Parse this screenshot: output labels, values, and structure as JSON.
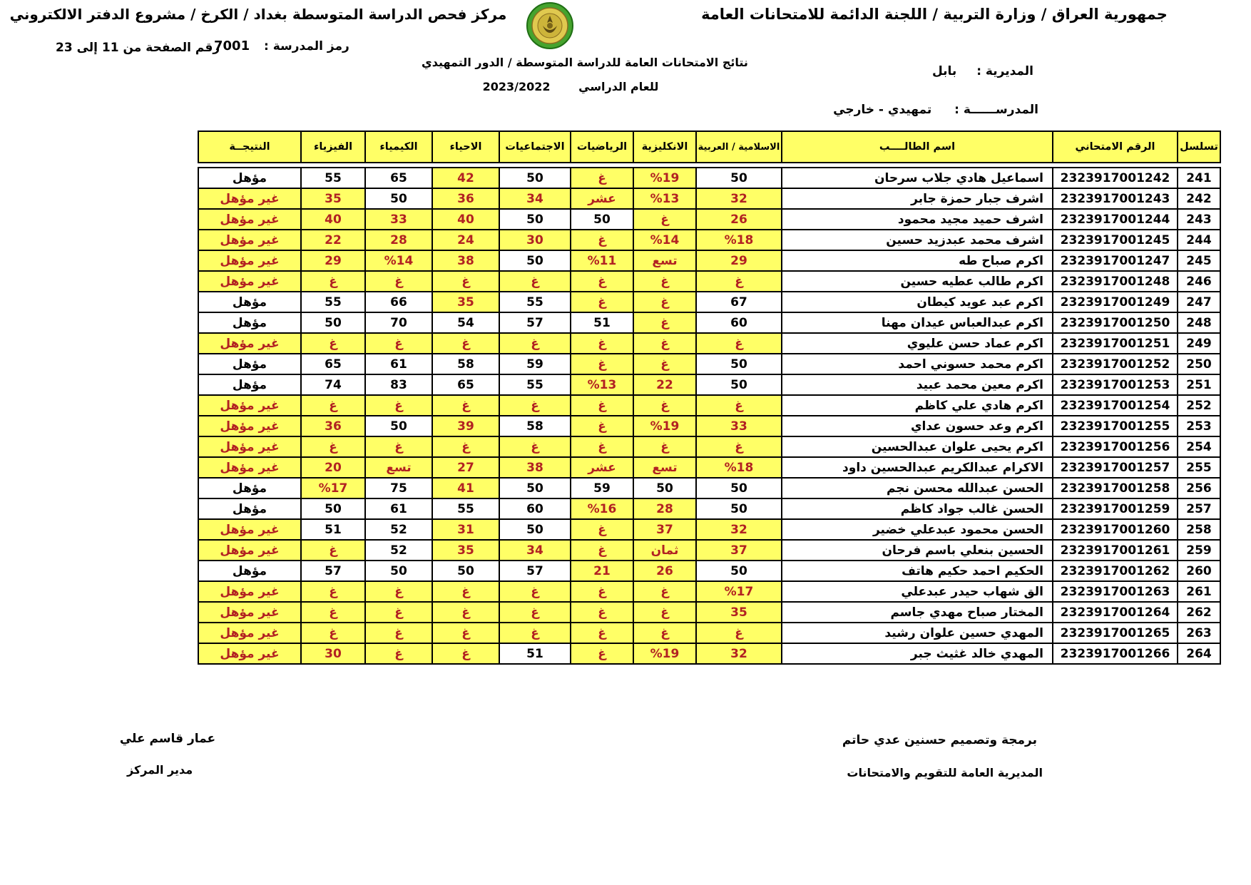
{
  "header": {
    "right_title": "جمهورية العراق / وزارة التربية / اللجنة الدائمة للامتحانات العامة",
    "left_title": "مركز فحص الدراسة المتوسطة بغداد / الكرخ / مشروع الدفتر الالكتروني",
    "school_code_label": "رمز المدرسة :",
    "school_code": "7001",
    "page_range": "رقم الصفحة من  11 إلى 23",
    "results_title": "نتائج الامتحانات العامة للدراسة المتوسطة / الدور التمهيدي",
    "year_label": "للعام الدراسي",
    "year": "2023/2022",
    "directorate_label": "المديرية :",
    "directorate": "بابل",
    "school_label": "المدرســــــة :",
    "school": "تمهيدي - خارجي",
    "logo_name": "ministry-emblem"
  },
  "colors": {
    "header_bg": "#ffff66",
    "fail_bg": "#ffff66",
    "fail_text": "#b22222",
    "pass_bg": "#ffffff",
    "pass_text": "#000000",
    "border": "#000000",
    "logo_green": "#46a32e",
    "logo_gold": "#e0c94f"
  },
  "table": {
    "columns": [
      "تسلسل",
      "الرقم الامتحاني",
      "اسم الطالــــب",
      "الاسلامية / العربية",
      "الانكليزية",
      "الرياضيات",
      "الاجتماعيات",
      "الاحياء",
      "الكيمياء",
      "الفيزياء",
      "النتيجــة"
    ],
    "rows": [
      {
        "serial": "241",
        "exam": "2323917001242",
        "name": "اسماعيل هادي جلاب سرحان",
        "cells": [
          [
            "50",
            0
          ],
          [
            "%19",
            1
          ],
          [
            "غ",
            1
          ],
          [
            "50",
            0
          ],
          [
            "42",
            1
          ],
          [
            "65",
            0
          ],
          [
            "55",
            0
          ]
        ],
        "result": [
          "مؤهل",
          0
        ]
      },
      {
        "serial": "242",
        "exam": "2323917001243",
        "name": "اشرف جبار حمزة جابر",
        "cells": [
          [
            "32",
            1
          ],
          [
            "%13",
            1
          ],
          [
            "عشر",
            1
          ],
          [
            "34",
            1
          ],
          [
            "36",
            1
          ],
          [
            "50",
            0
          ],
          [
            "35",
            1
          ]
        ],
        "result": [
          "غير مؤهل",
          1
        ]
      },
      {
        "serial": "243",
        "exam": "2323917001244",
        "name": "اشرف حميد مجيد محمود",
        "cells": [
          [
            "26",
            1
          ],
          [
            "غ",
            1
          ],
          [
            "50",
            0
          ],
          [
            "50",
            0
          ],
          [
            "40",
            1
          ],
          [
            "33",
            1
          ],
          [
            "40",
            1
          ]
        ],
        "result": [
          "غير مؤهل",
          1
        ]
      },
      {
        "serial": "244",
        "exam": "2323917001245",
        "name": "اشرف محمد عبدزيد حسين",
        "cells": [
          [
            "%18",
            1
          ],
          [
            "%14",
            1
          ],
          [
            "غ",
            1
          ],
          [
            "30",
            1
          ],
          [
            "24",
            1
          ],
          [
            "28",
            1
          ],
          [
            "22",
            1
          ]
        ],
        "result": [
          "غير مؤهل",
          1
        ]
      },
      {
        "serial": "245",
        "exam": "2323917001247",
        "name": "اكرم صباح طه",
        "cells": [
          [
            "29",
            1
          ],
          [
            "تسع",
            1
          ],
          [
            "%11",
            1
          ],
          [
            "50",
            0
          ],
          [
            "38",
            1
          ],
          [
            "%14",
            1
          ],
          [
            "29",
            1
          ]
        ],
        "result": [
          "غير مؤهل",
          1
        ]
      },
      {
        "serial": "246",
        "exam": "2323917001248",
        "name": "اكرم طالب عطيه حسين",
        "cells": [
          [
            "غ",
            1
          ],
          [
            "غ",
            1
          ],
          [
            "غ",
            1
          ],
          [
            "غ",
            1
          ],
          [
            "غ",
            1
          ],
          [
            "غ",
            1
          ],
          [
            "غ",
            1
          ]
        ],
        "result": [
          "غير مؤهل",
          1
        ]
      },
      {
        "serial": "247",
        "exam": "2323917001249",
        "name": "اكرم عبد عويد كيطان",
        "cells": [
          [
            "67",
            0
          ],
          [
            "غ",
            1
          ],
          [
            "غ",
            1
          ],
          [
            "55",
            0
          ],
          [
            "35",
            1
          ],
          [
            "66",
            0
          ],
          [
            "55",
            0
          ]
        ],
        "result": [
          "مؤهل",
          0
        ]
      },
      {
        "serial": "248",
        "exam": "2323917001250",
        "name": "اكرم عبدالعباس عيدان مهنا",
        "cells": [
          [
            "60",
            0
          ],
          [
            "غ",
            1
          ],
          [
            "51",
            0
          ],
          [
            "57",
            0
          ],
          [
            "54",
            0
          ],
          [
            "70",
            0
          ],
          [
            "50",
            0
          ]
        ],
        "result": [
          "مؤهل",
          0
        ]
      },
      {
        "serial": "249",
        "exam": "2323917001251",
        "name": "اكرم عماد حسن عليوي",
        "cells": [
          [
            "غ",
            1
          ],
          [
            "غ",
            1
          ],
          [
            "غ",
            1
          ],
          [
            "غ",
            1
          ],
          [
            "غ",
            1
          ],
          [
            "غ",
            1
          ],
          [
            "غ",
            1
          ]
        ],
        "result": [
          "غير مؤهل",
          1
        ]
      },
      {
        "serial": "250",
        "exam": "2323917001252",
        "name": "اكرم محمد حسوني احمد",
        "cells": [
          [
            "50",
            0
          ],
          [
            "غ",
            1
          ],
          [
            "غ",
            1
          ],
          [
            "59",
            0
          ],
          [
            "58",
            0
          ],
          [
            "61",
            0
          ],
          [
            "65",
            0
          ]
        ],
        "result": [
          "مؤهل",
          0
        ]
      },
      {
        "serial": "251",
        "exam": "2323917001253",
        "name": "اكرم معين محمد عبيد",
        "cells": [
          [
            "50",
            0
          ],
          [
            "22",
            1
          ],
          [
            "%13",
            1
          ],
          [
            "55",
            0
          ],
          [
            "65",
            0
          ],
          [
            "83",
            0
          ],
          [
            "74",
            0
          ]
        ],
        "result": [
          "مؤهل",
          0
        ]
      },
      {
        "serial": "252",
        "exam": "2323917001254",
        "name": "اكرم هادي علي كاظم",
        "cells": [
          [
            "غ",
            1
          ],
          [
            "غ",
            1
          ],
          [
            "غ",
            1
          ],
          [
            "غ",
            1
          ],
          [
            "غ",
            1
          ],
          [
            "غ",
            1
          ],
          [
            "غ",
            1
          ]
        ],
        "result": [
          "غير مؤهل",
          1
        ]
      },
      {
        "serial": "253",
        "exam": "2323917001255",
        "name": "اكرم وعد حسون عداي",
        "cells": [
          [
            "33",
            1
          ],
          [
            "%19",
            1
          ],
          [
            "غ",
            1
          ],
          [
            "58",
            0
          ],
          [
            "39",
            1
          ],
          [
            "50",
            0
          ],
          [
            "36",
            1
          ]
        ],
        "result": [
          "غير مؤهل",
          1
        ]
      },
      {
        "serial": "254",
        "exam": "2323917001256",
        "name": "اكرم يحيى علوان عبدالحسين",
        "cells": [
          [
            "غ",
            1
          ],
          [
            "غ",
            1
          ],
          [
            "غ",
            1
          ],
          [
            "غ",
            1
          ],
          [
            "غ",
            1
          ],
          [
            "غ",
            1
          ],
          [
            "غ",
            1
          ]
        ],
        "result": [
          "غير مؤهل",
          1
        ]
      },
      {
        "serial": "255",
        "exam": "2323917001257",
        "name": "الاكرام عبدالكريم عبدالحسين داود",
        "cells": [
          [
            "%18",
            1
          ],
          [
            "تسع",
            1
          ],
          [
            "عشر",
            1
          ],
          [
            "38",
            1
          ],
          [
            "27",
            1
          ],
          [
            "تسع",
            1
          ],
          [
            "20",
            1
          ]
        ],
        "result": [
          "غير مؤهل",
          1
        ]
      },
      {
        "serial": "256",
        "exam": "2323917001258",
        "name": "الحسن عبدالله محسن نجم",
        "cells": [
          [
            "50",
            0
          ],
          [
            "50",
            0
          ],
          [
            "59",
            0
          ],
          [
            "50",
            0
          ],
          [
            "41",
            1
          ],
          [
            "75",
            0
          ],
          [
            "%17",
            1
          ]
        ],
        "result": [
          "مؤهل",
          0
        ]
      },
      {
        "serial": "257",
        "exam": "2323917001259",
        "name": "الحسن غالب جواد كاظم",
        "cells": [
          [
            "50",
            0
          ],
          [
            "28",
            1
          ],
          [
            "%16",
            1
          ],
          [
            "60",
            0
          ],
          [
            "55",
            0
          ],
          [
            "61",
            0
          ],
          [
            "50",
            0
          ]
        ],
        "result": [
          "مؤهل",
          0
        ]
      },
      {
        "serial": "258",
        "exam": "2323917001260",
        "name": "الحسن محمود عبدعلي خضير",
        "cells": [
          [
            "32",
            1
          ],
          [
            "37",
            1
          ],
          [
            "غ",
            1
          ],
          [
            "50",
            0
          ],
          [
            "31",
            1
          ],
          [
            "52",
            0
          ],
          [
            "51",
            0
          ]
        ],
        "result": [
          "غير مؤهل",
          1
        ]
      },
      {
        "serial": "259",
        "exam": "2323917001261",
        "name": "الحسين بنعلي باسم فرحان",
        "cells": [
          [
            "37",
            1
          ],
          [
            "ثمان",
            1
          ],
          [
            "غ",
            1
          ],
          [
            "34",
            1
          ],
          [
            "35",
            1
          ],
          [
            "52",
            0
          ],
          [
            "غ",
            1
          ]
        ],
        "result": [
          "غير مؤهل",
          1
        ]
      },
      {
        "serial": "260",
        "exam": "2323917001262",
        "name": "الحكيم احمد حكيم هاتف",
        "cells": [
          [
            "50",
            0
          ],
          [
            "26",
            1
          ],
          [
            "21",
            1
          ],
          [
            "57",
            0
          ],
          [
            "50",
            0
          ],
          [
            "50",
            0
          ],
          [
            "57",
            0
          ]
        ],
        "result": [
          "مؤهل",
          0
        ]
      },
      {
        "serial": "261",
        "exam": "2323917001263",
        "name": "الق شهاب حيدر عبدعلي",
        "cells": [
          [
            "%17",
            1
          ],
          [
            "غ",
            1
          ],
          [
            "غ",
            1
          ],
          [
            "غ",
            1
          ],
          [
            "غ",
            1
          ],
          [
            "غ",
            1
          ],
          [
            "غ",
            1
          ]
        ],
        "result": [
          "غير مؤهل",
          1
        ]
      },
      {
        "serial": "262",
        "exam": "2323917001264",
        "name": "المختار صباح مهدي جاسم",
        "cells": [
          [
            "35",
            1
          ],
          [
            "غ",
            1
          ],
          [
            "غ",
            1
          ],
          [
            "غ",
            1
          ],
          [
            "غ",
            1
          ],
          [
            "غ",
            1
          ],
          [
            "غ",
            1
          ]
        ],
        "result": [
          "غير مؤهل",
          1
        ]
      },
      {
        "serial": "263",
        "exam": "2323917001265",
        "name": "المهدي حسين علوان رشيد",
        "cells": [
          [
            "غ",
            1
          ],
          [
            "غ",
            1
          ],
          [
            "غ",
            1
          ],
          [
            "غ",
            1
          ],
          [
            "غ",
            1
          ],
          [
            "غ",
            1
          ],
          [
            "غ",
            1
          ]
        ],
        "result": [
          "غير مؤهل",
          1
        ]
      },
      {
        "serial": "264",
        "exam": "2323917001266",
        "name": "المهدي خالد غثيث جبر",
        "cells": [
          [
            "32",
            1
          ],
          [
            "%19",
            1
          ],
          [
            "غ",
            1
          ],
          [
            "51",
            0
          ],
          [
            "غ",
            1
          ],
          [
            "غ",
            1
          ],
          [
            "30",
            1
          ]
        ],
        "result": [
          "غير مؤهل",
          1
        ]
      }
    ]
  },
  "footer": {
    "right_line1": "برمجة وتصميم حسنين عدي حاتم",
    "right_line2": "المديرية العامة للتقويم والامتحانات",
    "left_name": "عمار قاسم علي",
    "left_title": "مدير المركز"
  }
}
